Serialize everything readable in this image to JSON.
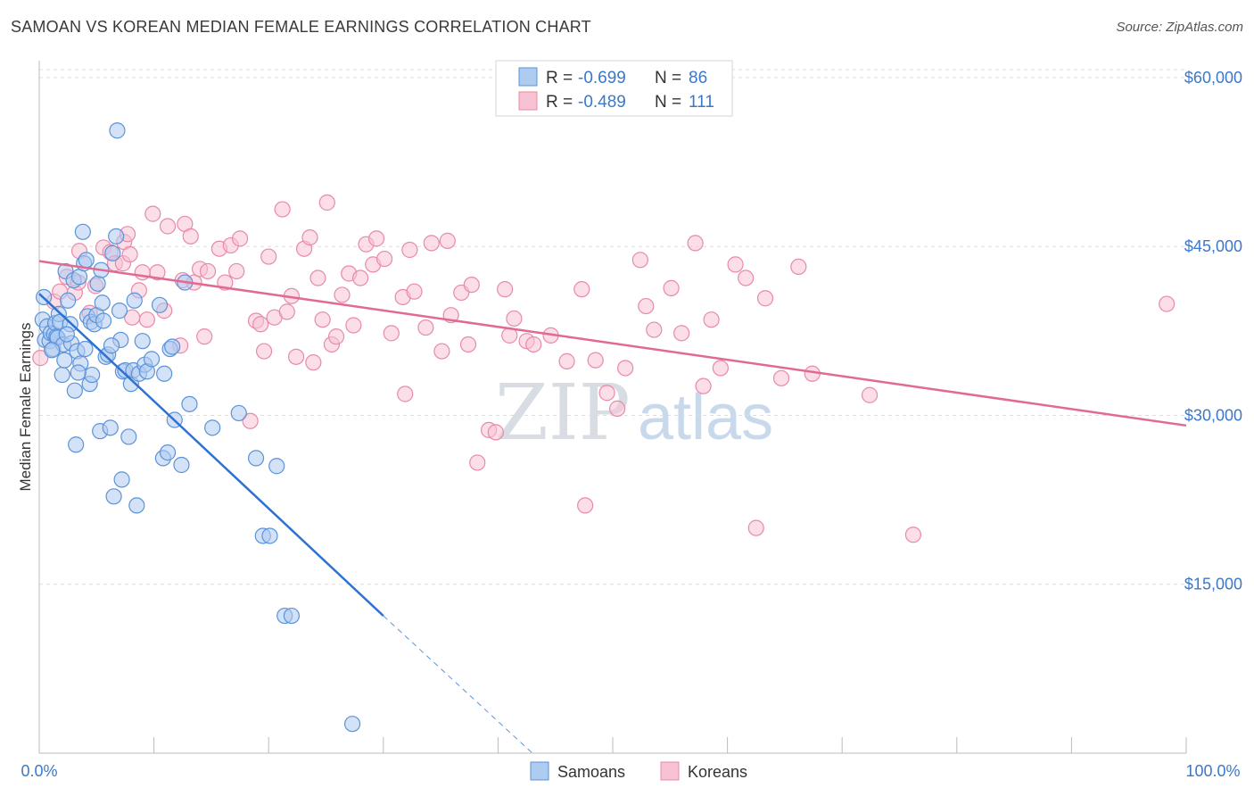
{
  "title": "SAMOAN VS KOREAN MEDIAN FEMALE EARNINGS CORRELATION CHART",
  "source": "Source: ZipAtlas.com",
  "watermark": {
    "zip": "ZIP",
    "atlas": "atlas"
  },
  "legend": {
    "samoans": {
      "r_label": "R =",
      "r_value": "-0.699",
      "n_label": "N =",
      "n_value": "86"
    },
    "koreans": {
      "r_label": "R =",
      "r_value": "-0.489",
      "n_label": "N =",
      "n_value": "111"
    }
  },
  "bottom_legend": {
    "samoans": "Samoans",
    "koreans": "Koreans"
  },
  "colors": {
    "samoans_fill": "#aecbf0",
    "samoans_stroke": "#5b93d9",
    "samoans_line": "#2d72d2",
    "koreans_fill": "#f7c3d3",
    "koreans_stroke": "#e88aa8",
    "koreans_line": "#e06a94",
    "axis_text": "#3b78c9",
    "grid": "#dddddd"
  },
  "chart_data": {
    "type": "scatter",
    "title": "SAMOAN VS KOREAN MEDIAN FEMALE EARNINGS CORRELATION CHART",
    "xlabel": "",
    "ylabel": "Median Female Earnings",
    "xlim": [
      0,
      100
    ],
    "ylim": [
      0,
      61500
    ],
    "x_tick_labels": [
      "0.0%",
      "100.0%"
    ],
    "y_ticks": [
      15000,
      30000,
      45000,
      60000
    ],
    "y_tick_labels": [
      "$15,000",
      "$30,000",
      "$45,000",
      "$60,000"
    ],
    "series": [
      {
        "name": "Samoans",
        "trend": {
          "x": [
            0,
            30
          ],
          "y": [
            40800,
            12200
          ],
          "dashed_extension": {
            "x": [
              30,
              43
            ],
            "y": [
              12200,
              0
            ]
          }
        },
        "points": [
          [
            0.3,
            38500
          ],
          [
            0.5,
            36700
          ],
          [
            0.7,
            37900
          ],
          [
            0.9,
            36600
          ],
          [
            1.0,
            37300
          ],
          [
            1.2,
            35900
          ],
          [
            1.3,
            37200
          ],
          [
            1.4,
            38200
          ],
          [
            1.5,
            37000
          ],
          [
            1.6,
            36900
          ],
          [
            1.7,
            39000
          ],
          [
            1.8,
            38300
          ],
          [
            2.0,
            33600
          ],
          [
            2.1,
            36300
          ],
          [
            2.2,
            34900
          ],
          [
            2.3,
            42800
          ],
          [
            2.5,
            40200
          ],
          [
            2.7,
            38100
          ],
          [
            2.8,
            36400
          ],
          [
            3.0,
            42000
          ],
          [
            3.1,
            32200
          ],
          [
            3.2,
            27400
          ],
          [
            3.3,
            35700
          ],
          [
            3.5,
            42300
          ],
          [
            3.6,
            34600
          ],
          [
            3.8,
            46300
          ],
          [
            3.9,
            43500
          ],
          [
            4.0,
            35900
          ],
          [
            4.1,
            43800
          ],
          [
            4.2,
            38800
          ],
          [
            4.4,
            32800
          ],
          [
            4.5,
            38300
          ],
          [
            4.6,
            33600
          ],
          [
            4.8,
            38100
          ],
          [
            5.0,
            38900
          ],
          [
            5.1,
            41700
          ],
          [
            5.3,
            28600
          ],
          [
            5.4,
            42900
          ],
          [
            5.5,
            40000
          ],
          [
            5.6,
            38400
          ],
          [
            5.8,
            35200
          ],
          [
            6.0,
            35400
          ],
          [
            6.2,
            28900
          ],
          [
            6.4,
            44400
          ],
          [
            6.5,
            22800
          ],
          [
            6.7,
            45900
          ],
          [
            6.8,
            55300
          ],
          [
            7.0,
            39300
          ],
          [
            7.1,
            36700
          ],
          [
            7.2,
            24300
          ],
          [
            7.3,
            33900
          ],
          [
            7.5,
            34000
          ],
          [
            7.8,
            28100
          ],
          [
            8.0,
            32800
          ],
          [
            8.2,
            34000
          ],
          [
            8.3,
            40200
          ],
          [
            8.5,
            22000
          ],
          [
            8.7,
            33700
          ],
          [
            9.0,
            36600
          ],
          [
            9.2,
            34500
          ],
          [
            9.4,
            33900
          ],
          [
            10.5,
            39800
          ],
          [
            10.8,
            26200
          ],
          [
            10.9,
            33700
          ],
          [
            11.2,
            26700
          ],
          [
            11.4,
            35900
          ],
          [
            11.6,
            36100
          ],
          [
            11.8,
            29600
          ],
          [
            12.4,
            25600
          ],
          [
            12.7,
            41800
          ],
          [
            13.1,
            31000
          ],
          [
            15.1,
            28900
          ],
          [
            17.4,
            30200
          ],
          [
            18.9,
            26200
          ],
          [
            19.5,
            19300
          ],
          [
            20.1,
            19300
          ],
          [
            20.7,
            25500
          ],
          [
            21.4,
            12200
          ],
          [
            22.0,
            12200
          ],
          [
            27.3,
            2600
          ],
          [
            0.4,
            40500
          ],
          [
            1.1,
            35800
          ],
          [
            2.4,
            37200
          ],
          [
            3.4,
            33800
          ],
          [
            6.3,
            36200
          ],
          [
            9.8,
            35000
          ]
        ]
      },
      {
        "name": "Koreans",
        "trend": {
          "x": [
            0,
            100
          ],
          "y": [
            43700,
            29100
          ]
        },
        "points": [
          [
            0.1,
            35100
          ],
          [
            1.3,
            40100
          ],
          [
            1.8,
            41000
          ],
          [
            2.4,
            42300
          ],
          [
            3.1,
            40900
          ],
          [
            3.4,
            41800
          ],
          [
            3.5,
            44600
          ],
          [
            4.4,
            39100
          ],
          [
            4.9,
            41500
          ],
          [
            5.6,
            44900
          ],
          [
            6.2,
            44500
          ],
          [
            6.6,
            43500
          ],
          [
            7.3,
            43500
          ],
          [
            7.4,
            45400
          ],
          [
            7.7,
            46100
          ],
          [
            7.9,
            44300
          ],
          [
            8.1,
            38700
          ],
          [
            8.7,
            41100
          ],
          [
            9.0,
            42700
          ],
          [
            9.4,
            38500
          ],
          [
            9.9,
            47900
          ],
          [
            10.3,
            42700
          ],
          [
            10.9,
            39300
          ],
          [
            11.2,
            46800
          ],
          [
            12.3,
            36200
          ],
          [
            12.5,
            42000
          ],
          [
            12.7,
            47000
          ],
          [
            13.2,
            45900
          ],
          [
            13.5,
            41800
          ],
          [
            14.0,
            43000
          ],
          [
            14.4,
            37000
          ],
          [
            14.7,
            42800
          ],
          [
            15.7,
            44800
          ],
          [
            16.2,
            41800
          ],
          [
            16.7,
            45100
          ],
          [
            17.2,
            42800
          ],
          [
            17.5,
            45700
          ],
          [
            18.4,
            29500
          ],
          [
            18.9,
            38400
          ],
          [
            19.3,
            38100
          ],
          [
            19.6,
            35700
          ],
          [
            20.0,
            44100
          ],
          [
            20.5,
            38700
          ],
          [
            21.2,
            48300
          ],
          [
            21.6,
            39200
          ],
          [
            22.0,
            40600
          ],
          [
            22.4,
            35200
          ],
          [
            23.1,
            44800
          ],
          [
            23.6,
            45800
          ],
          [
            23.9,
            34700
          ],
          [
            24.3,
            42200
          ],
          [
            24.7,
            38500
          ],
          [
            25.1,
            48900
          ],
          [
            25.5,
            36300
          ],
          [
            25.9,
            37000
          ],
          [
            26.4,
            40700
          ],
          [
            27.0,
            42600
          ],
          [
            27.4,
            38000
          ],
          [
            28.0,
            42200
          ],
          [
            28.5,
            45200
          ],
          [
            29.1,
            43400
          ],
          [
            29.4,
            45700
          ],
          [
            30.1,
            43900
          ],
          [
            30.7,
            37300
          ],
          [
            31.7,
            40500
          ],
          [
            31.9,
            31900
          ],
          [
            32.3,
            44700
          ],
          [
            32.7,
            41000
          ],
          [
            33.7,
            37800
          ],
          [
            34.2,
            45300
          ],
          [
            35.1,
            35700
          ],
          [
            35.6,
            45500
          ],
          [
            35.9,
            38900
          ],
          [
            36.8,
            40900
          ],
          [
            37.4,
            36300
          ],
          [
            37.7,
            41600
          ],
          [
            38.2,
            25800
          ],
          [
            39.2,
            28700
          ],
          [
            39.8,
            28500
          ],
          [
            40.6,
            41200
          ],
          [
            41.0,
            37100
          ],
          [
            41.4,
            38600
          ],
          [
            42.5,
            36600
          ],
          [
            43.1,
            36300
          ],
          [
            44.6,
            37100
          ],
          [
            46.0,
            34800
          ],
          [
            47.3,
            41200
          ],
          [
            47.6,
            22000
          ],
          [
            48.5,
            34900
          ],
          [
            49.5,
            32000
          ],
          [
            50.4,
            30600
          ],
          [
            51.1,
            34200
          ],
          [
            52.4,
            43800
          ],
          [
            52.9,
            39700
          ],
          [
            53.6,
            37600
          ],
          [
            55.1,
            41300
          ],
          [
            56.0,
            37300
          ],
          [
            57.2,
            45300
          ],
          [
            57.9,
            32600
          ],
          [
            58.6,
            38500
          ],
          [
            59.4,
            34200
          ],
          [
            60.7,
            43400
          ],
          [
            61.6,
            42200
          ],
          [
            62.5,
            20000
          ],
          [
            63.3,
            40400
          ],
          [
            64.7,
            33300
          ],
          [
            66.2,
            43200
          ],
          [
            67.4,
            33700
          ],
          [
            72.4,
            31800
          ],
          [
            76.2,
            19400
          ],
          [
            98.3,
            39900
          ]
        ]
      }
    ]
  }
}
